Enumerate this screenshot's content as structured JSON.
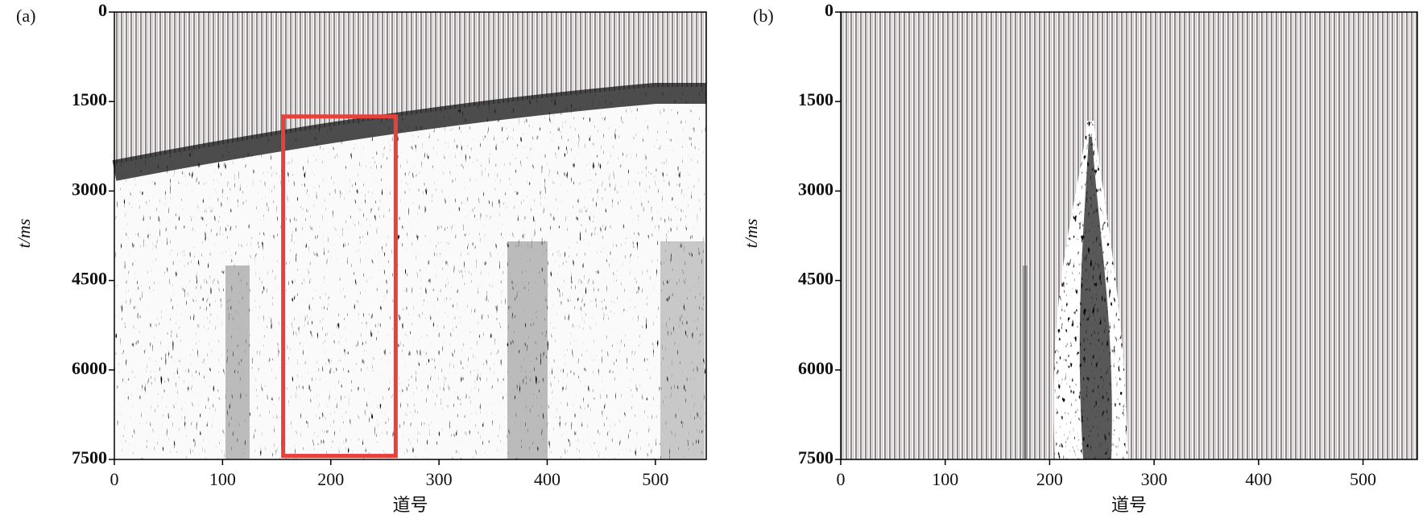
{
  "chart_data": [
    {
      "type": "image",
      "panel_label": "(a)",
      "xlabel": "道号",
      "ylabel": "t/ms",
      "xlim": [
        0,
        547
      ],
      "xticks": [
        0,
        100,
        200,
        300,
        400,
        500
      ],
      "ylim": [
        7500,
        0
      ],
      "yticks": [
        0,
        1500,
        3000,
        4500,
        6000,
        7500
      ],
      "highlight_box": {
        "x": [
          156,
          260
        ],
        "y": [
          1750,
          7440
        ],
        "color": "#e8403a"
      }
    },
    {
      "type": "image",
      "panel_label": "(b)",
      "xlabel": "道号",
      "ylabel": "t/ms",
      "xlim": [
        0,
        552
      ],
      "xticks": [
        0,
        100,
        200,
        300,
        400,
        500
      ],
      "ylim": [
        7500,
        0
      ],
      "yticks": [
        0,
        1500,
        3000,
        4500,
        6000,
        7500
      ]
    }
  ]
}
